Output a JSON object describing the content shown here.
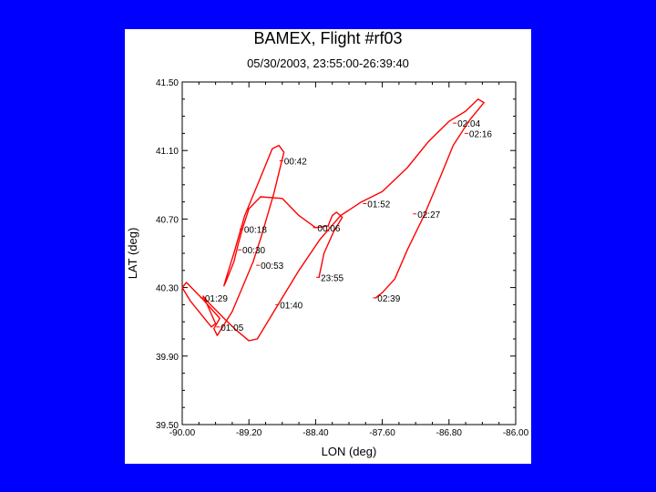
{
  "colors": {
    "background": "#0000ff",
    "panel": "#ffffff",
    "track": "#ff0000",
    "axis": "#000000"
  },
  "chart_data": {
    "type": "line",
    "title": "BAMEX, Flight #rf03",
    "subtitle": "05/30/2003, 23:55:00-26:39:40",
    "xlabel": "LON (deg)",
    "ylabel": "LAT (deg)",
    "xlim": [
      -90.0,
      -86.0
    ],
    "ylim": [
      39.5,
      41.5
    ],
    "xticks": [
      -90.0,
      -89.2,
      -88.4,
      -87.6,
      -86.8,
      -86.0
    ],
    "xtick_labels": [
      "-90.00",
      "-89.20",
      "-88.40",
      "-87.60",
      "-86.80",
      "-86.00"
    ],
    "yticks": [
      39.5,
      39.9,
      40.3,
      40.7,
      41.1,
      41.5
    ],
    "ytick_labels": [
      "39.50",
      "39.90",
      "40.30",
      "40.70",
      "41.10",
      "41.50"
    ],
    "grid": false,
    "series": [
      {
        "points": [
          [
            -88.36,
            40.36
          ],
          [
            -88.3,
            40.5
          ],
          [
            -88.18,
            40.63
          ],
          [
            -88.08,
            40.71
          ],
          [
            -88.15,
            40.74
          ],
          [
            -88.2,
            40.72
          ],
          [
            -88.25,
            40.66
          ],
          [
            -88.4,
            40.65
          ],
          [
            -88.6,
            40.72
          ],
          [
            -88.8,
            40.82
          ],
          [
            -89.06,
            40.83
          ],
          [
            -89.2,
            40.76
          ],
          [
            -89.28,
            40.64
          ],
          [
            -89.33,
            40.55
          ],
          [
            -89.38,
            40.45
          ],
          [
            -89.48,
            40.33
          ],
          [
            -89.5,
            40.31
          ],
          [
            -89.47,
            40.36
          ],
          [
            -89.38,
            40.5
          ],
          [
            -89.25,
            40.72
          ],
          [
            -89.08,
            40.92
          ],
          [
            -88.92,
            41.11
          ],
          [
            -88.84,
            41.13
          ],
          [
            -88.78,
            41.09
          ],
          [
            -88.9,
            40.85
          ],
          [
            -89.05,
            40.6
          ],
          [
            -89.15,
            40.45
          ],
          [
            -89.4,
            40.16
          ],
          [
            -89.58,
            40.02
          ],
          [
            -89.62,
            40.06
          ],
          [
            -89.55,
            40.12
          ],
          [
            -89.75,
            40.23
          ],
          [
            -89.95,
            40.33
          ],
          [
            -90.0,
            40.3
          ],
          [
            -89.9,
            40.22
          ],
          [
            -89.7,
            40.1
          ],
          [
            -89.65,
            40.07
          ],
          [
            -89.6,
            40.09
          ],
          [
            -89.7,
            40.2
          ],
          [
            -89.75,
            40.25
          ],
          [
            -89.7,
            40.22
          ],
          [
            -89.5,
            40.12
          ],
          [
            -89.35,
            40.05
          ],
          [
            -89.2,
            39.99
          ],
          [
            -89.1,
            40.0
          ],
          [
            -88.85,
            40.2
          ],
          [
            -88.6,
            40.4
          ],
          [
            -88.35,
            40.58
          ],
          [
            -88.1,
            40.72
          ],
          [
            -87.85,
            40.8
          ],
          [
            -87.6,
            40.86
          ],
          [
            -87.3,
            41.0
          ],
          [
            -87.05,
            41.15
          ],
          [
            -86.8,
            41.27
          ],
          [
            -86.6,
            41.33
          ],
          [
            -86.45,
            41.4
          ],
          [
            -86.38,
            41.38
          ],
          [
            -86.55,
            41.28
          ],
          [
            -86.75,
            41.13
          ],
          [
            -86.9,
            40.95
          ],
          [
            -87.1,
            40.72
          ],
          [
            -87.3,
            40.52
          ],
          [
            -87.45,
            40.35
          ],
          [
            -87.6,
            40.27
          ],
          [
            -87.68,
            40.24
          ]
        ]
      }
    ],
    "annotations": [
      {
        "text": "23:55",
        "x": -88.36,
        "y": 40.36
      },
      {
        "text": "00:06",
        "x": -88.4,
        "y": 40.65
      },
      {
        "text": "00:18",
        "x": -89.28,
        "y": 40.64
      },
      {
        "text": "00:30",
        "x": -89.3,
        "y": 40.52
      },
      {
        "text": "00:42",
        "x": -88.8,
        "y": 41.04
      },
      {
        "text": "00:53",
        "x": -89.08,
        "y": 40.43
      },
      {
        "text": "01:05",
        "x": -89.56,
        "y": 40.07
      },
      {
        "text": "01:29",
        "x": -89.75,
        "y": 40.24
      },
      {
        "text": "01:40",
        "x": -88.85,
        "y": 40.2
      },
      {
        "text": "01:52",
        "x": -87.8,
        "y": 40.79
      },
      {
        "text": "02:04",
        "x": -86.72,
        "y": 41.26
      },
      {
        "text": "02:16",
        "x": -86.58,
        "y": 41.2
      },
      {
        "text": "02:27",
        "x": -87.2,
        "y": 40.73
      },
      {
        "text": "02:39",
        "x": -87.68,
        "y": 40.24
      }
    ]
  }
}
